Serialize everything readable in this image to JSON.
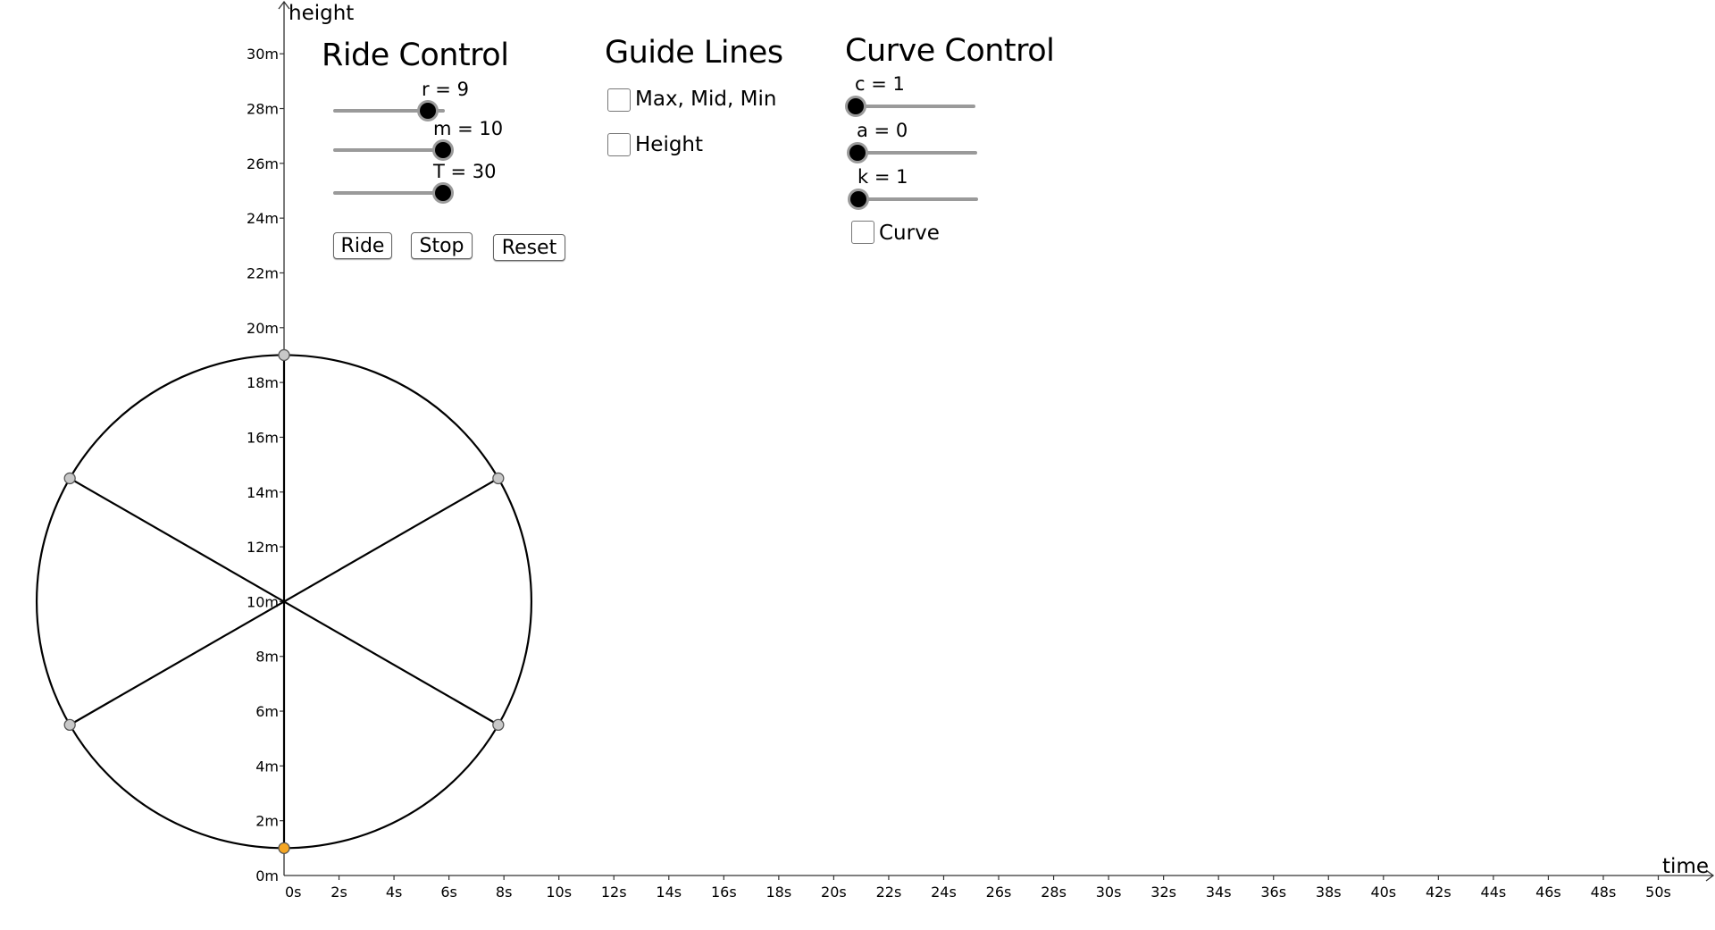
{
  "graph": {
    "y_axis_label": "height",
    "x_axis_label": "time",
    "y_ticks": [
      "0m",
      "2m",
      "4m",
      "6m",
      "8m",
      "10m",
      "12m",
      "14m",
      "16m",
      "18m",
      "20m",
      "22m",
      "24m",
      "26m",
      "28m",
      "30m"
    ],
    "x_ticks": [
      "0s",
      "2s",
      "4s",
      "6s",
      "8s",
      "10s",
      "12s",
      "14s",
      "16s",
      "18s",
      "20s",
      "22s",
      "24s",
      "26s",
      "28s",
      "30s",
      "32s",
      "34s",
      "36s",
      "38s",
      "40s",
      "42s",
      "44s",
      "46s",
      "48s",
      "50s"
    ],
    "wheel": {
      "center_time_s": 0,
      "center_height_m": 10,
      "radius_m": 9,
      "spoke_count": 6,
      "rider_angle_deg": 270,
      "rim_color": "#000000",
      "point_color": "#c8c8c8",
      "rider_color": "#f5a623"
    }
  },
  "ride_control": {
    "title": "Ride Control",
    "sliders": [
      {
        "label": "r = 9",
        "value": 9,
        "fraction": 0.85
      },
      {
        "label": "m = 10",
        "value": 10,
        "fraction": 1.0
      },
      {
        "label": "T = 30",
        "value": 30,
        "fraction": 1.0
      }
    ],
    "buttons": {
      "ride": "Ride",
      "stop": "Stop",
      "reset": "Reset"
    }
  },
  "guide_lines": {
    "title": "Guide Lines",
    "options": [
      {
        "label": "Max, Mid, Min",
        "checked": false
      },
      {
        "label": "Height",
        "checked": false
      }
    ]
  },
  "curve_control": {
    "title": "Curve Control",
    "sliders": [
      {
        "label": "c = 1",
        "value": 1,
        "fraction": 0.0
      },
      {
        "label": "a = 0",
        "value": 0,
        "fraction": 0.0
      },
      {
        "label": "k = 1",
        "value": 1,
        "fraction": 0.0
      }
    ],
    "curve_checkbox": {
      "label": "Curve",
      "checked": false
    }
  }
}
